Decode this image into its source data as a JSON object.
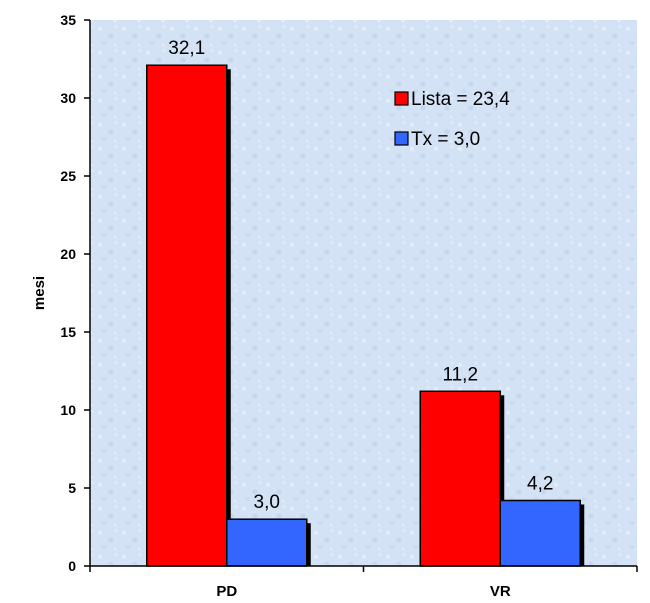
{
  "chart_data": {
    "type": "bar",
    "title": "",
    "xlabel": "",
    "ylabel": "mesi",
    "categories": [
      "PD",
      "VR"
    ],
    "series": [
      {
        "name": "Lista = 23,4",
        "values": [
          32.1,
          11.2
        ],
        "labels": [
          "32,1",
          "11,2"
        ],
        "color": "#ff0000"
      },
      {
        "name": "Tx = 3,0",
        "values": [
          3.0,
          4.2
        ],
        "labels": [
          "3,0",
          "4,2"
        ],
        "color": "#3366ff"
      }
    ],
    "ylim": [
      0,
      35
    ],
    "yticks": [
      0,
      5,
      10,
      15,
      20,
      25,
      30,
      35
    ],
    "legend_position": "top-right",
    "grid": false,
    "plot_background": "#d6e4f5"
  }
}
